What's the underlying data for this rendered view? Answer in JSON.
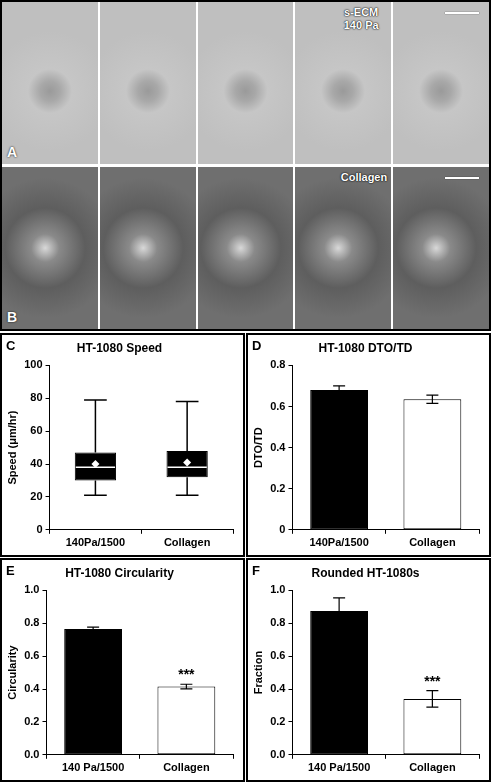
{
  "images": [
    {
      "panel": "A",
      "label": "s-ECM 140 Pa",
      "frames": 5
    },
    {
      "panel": "B",
      "label": "Collagen",
      "frames": 5
    }
  ],
  "chart_data": [
    {
      "panel": "C",
      "type": "box",
      "title": "HT-1080 Speed",
      "y_label": "Speed (μm/hr)",
      "categories": [
        "140Pa/1500",
        "Collagen"
      ],
      "values": [
        {
          "min": 21,
          "q1": 30,
          "median": 38,
          "q3": 47,
          "max": 79,
          "mean": 40
        },
        {
          "min": 21,
          "q1": 32,
          "median": 38,
          "q3": 48,
          "max": 78,
          "mean": 41
        }
      ],
      "color": "#000000",
      "ylim": [
        0,
        100
      ],
      "yticks": [
        0,
        20,
        40,
        60,
        80,
        100
      ],
      "grid": false
    },
    {
      "panel": "D",
      "type": "bar",
      "title": "HT-1080 DTO/TD",
      "y_label": "DTO/TD",
      "categories": [
        "140Pa/1500",
        "Collagen"
      ],
      "values": [
        0.68,
        0.635
      ],
      "errors": [
        0.02,
        0.02
      ],
      "colors": [
        "#000000",
        "#ffffff"
      ],
      "ylim": [
        0,
        0.8
      ],
      "yticks": [
        0,
        0.2,
        0.4,
        0.6,
        0.8
      ],
      "grid": false
    },
    {
      "panel": "E",
      "type": "bar",
      "title": "HT-1080 Circularity",
      "y_label": "Circularity",
      "categories": [
        "140 Pa/1500",
        "Collagen"
      ],
      "values": [
        0.765,
        0.415
      ],
      "errors": [
        0.012,
        0.014
      ],
      "annotations": [
        {
          "category": "Collagen",
          "text": "***"
        }
      ],
      "colors": [
        "#000000",
        "#ffffff"
      ],
      "ylim": [
        0,
        1
      ],
      "yticks": [
        {
          "value": 0,
          "label": "0.0"
        },
        0.2,
        0.4,
        0.6,
        0.8,
        {
          "value": 1,
          "label": "1.0"
        }
      ],
      "grid": false
    },
    {
      "panel": "F",
      "type": "bar",
      "title": "Rounded HT-1080s",
      "y_label": "Fraction",
      "categories": [
        "140 Pa/1500",
        "Collagen"
      ],
      "values": [
        0.875,
        0.34
      ],
      "errors": [
        0.08,
        0.05
      ],
      "annotations": [
        {
          "category": "Collagen",
          "text": "***"
        }
      ],
      "colors": [
        "#000000",
        "#ffffff"
      ],
      "ylim": [
        0,
        1
      ],
      "yticks": [
        {
          "value": 0,
          "label": "0.0"
        },
        0.2,
        0.4,
        0.6,
        0.8,
        {
          "value": 1,
          "label": "1.0"
        }
      ],
      "grid": false
    }
  ]
}
